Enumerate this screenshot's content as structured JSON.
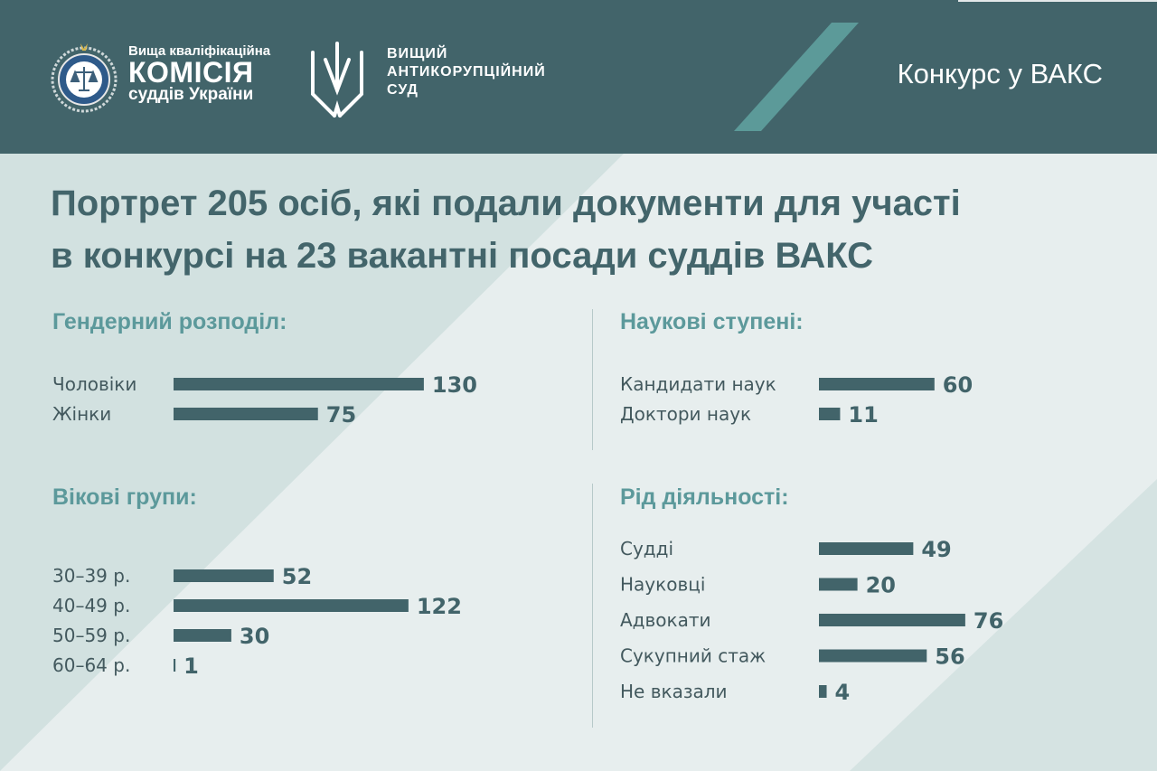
{
  "header": {
    "org1_line1": "Вища кваліфікаційна",
    "org1_line2": "КОМІСІЯ",
    "org1_line3": "суддів України",
    "org2_line1": "ВИЩИЙ",
    "org2_line2": "АНТИКОРУПЦІЙНИЙ",
    "org2_line3": "СУД",
    "contest": "Конкурс у ВАКС"
  },
  "title_line1": "Портрет 205 осіб, які подали документи для участі",
  "title_line2": "в конкурсі на 23 вакантні посади суддів ВАКС",
  "colors": {
    "header": "#42646a",
    "accent": "#5c9a99",
    "bar": "#42646a",
    "section_title": "#5c999b"
  },
  "chart_data": [
    {
      "type": "bar",
      "orientation": "horizontal",
      "title": "Гендерний розподіл:",
      "categories": [
        "Чоловіки",
        "Жінки"
      ],
      "values": [
        130,
        75
      ]
    },
    {
      "type": "bar",
      "orientation": "horizontal",
      "title": "Вікові групи:",
      "categories": [
        "30–39 р.",
        "40–49 р.",
        "50–59 р.",
        "60–64 р."
      ],
      "values": [
        52,
        122,
        30,
        1
      ]
    },
    {
      "type": "bar",
      "orientation": "horizontal",
      "title": "Наукові ступені:",
      "categories": [
        "Кандидати наук",
        "Доктори наук"
      ],
      "values": [
        60,
        11
      ]
    },
    {
      "type": "bar",
      "orientation": "horizontal",
      "title": "Рід діяльності:",
      "categories": [
        "Судді",
        "Науковці",
        "Адвокати",
        "Сукупний стаж",
        "Не вказали"
      ],
      "values": [
        49,
        20,
        76,
        56,
        4
      ]
    }
  ]
}
